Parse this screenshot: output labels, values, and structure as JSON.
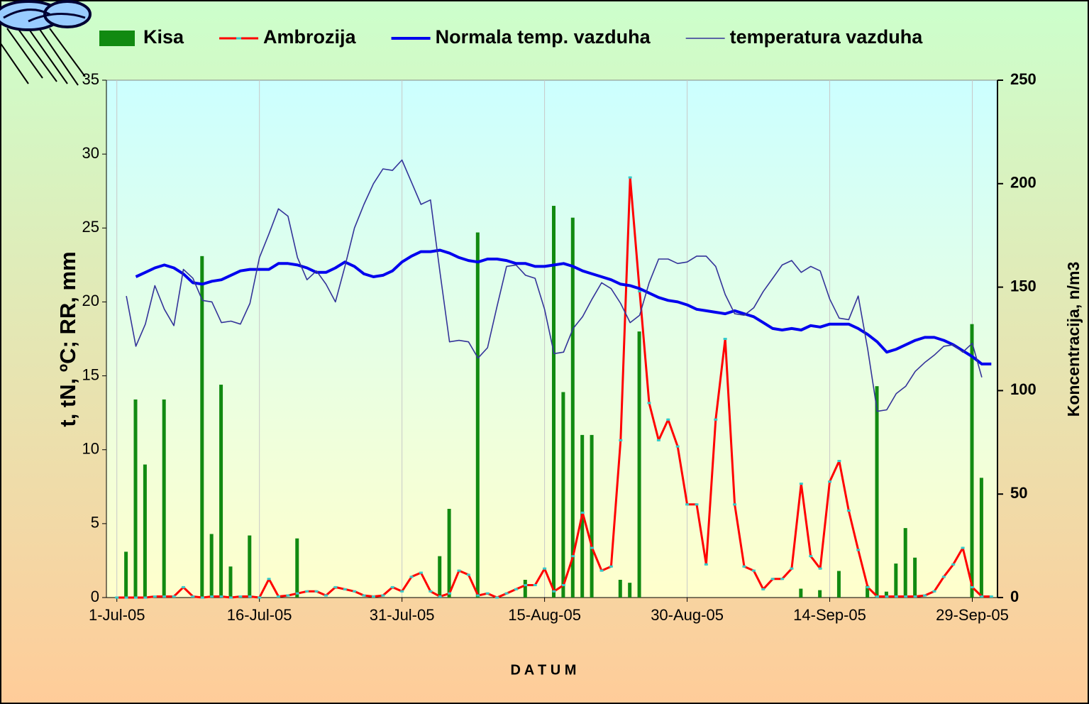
{
  "chart_data": {
    "type": "combo",
    "categories": [
      "1-Jul-05",
      null,
      null,
      null,
      null,
      null,
      null,
      null,
      null,
      null,
      null,
      null,
      null,
      null,
      null,
      "16-Jul-05",
      null,
      null,
      null,
      null,
      null,
      null,
      null,
      null,
      null,
      null,
      null,
      null,
      null,
      null,
      "31-Jul-05",
      null,
      null,
      null,
      null,
      null,
      null,
      null,
      null,
      null,
      null,
      null,
      null,
      null,
      null,
      "15-Aug-05",
      null,
      null,
      null,
      null,
      null,
      null,
      null,
      null,
      null,
      null,
      null,
      null,
      null,
      null,
      "30-Aug-05",
      null,
      null,
      null,
      null,
      null,
      null,
      null,
      null,
      null,
      null,
      null,
      null,
      null,
      null,
      "14-Sep-05",
      null,
      null,
      null,
      null,
      null,
      null,
      null,
      null,
      null,
      null,
      null,
      null,
      null,
      null,
      "29-Sep-05",
      null,
      null
    ],
    "x_label": "D A T U M",
    "y_label": "t, tN, ºC;  RR, mm",
    "y2_label": "Koncentracija, n/m3",
    "ylim": [
      0,
      35
    ],
    "yticks": [
      0,
      5,
      10,
      15,
      20,
      25,
      30,
      35
    ],
    "y2lim": [
      0,
      250
    ],
    "y2ticks": [
      0,
      50,
      100,
      150,
      200,
      250
    ],
    "xgrid": true,
    "legend": "top",
    "series": [
      {
        "name": "Kisa",
        "type": "bar",
        "color": "#118a11",
        "values": [
          0,
          3.1,
          13.4,
          9,
          0,
          13.4,
          0,
          0,
          0,
          23.1,
          4.3,
          14.4,
          2.1,
          0,
          4.2,
          0,
          0,
          0,
          0,
          4,
          0,
          0,
          0,
          0,
          0,
          0,
          0,
          0,
          0,
          0,
          0,
          0,
          0,
          0,
          2.8,
          6,
          0,
          0,
          24.7,
          0,
          0,
          0,
          0,
          1.2,
          0,
          0,
          26.5,
          13.9,
          25.7,
          11,
          11,
          0,
          0,
          1.2,
          1,
          18,
          0,
          0,
          0,
          0,
          0,
          0,
          0,
          0,
          0,
          0,
          0,
          0,
          0,
          0,
          0,
          0,
          0.6,
          0,
          0.5,
          0,
          1.8,
          0,
          0,
          0.8,
          14.3,
          0.4,
          2.3,
          4.7,
          2.7,
          0,
          0,
          0,
          0,
          0,
          18.5,
          8.1,
          0
        ]
      },
      {
        "name": "Ambrozija",
        "type": "line",
        "axis": "y2",
        "color": "#ff0000",
        "marker_color": "#33cccc",
        "values": [
          0,
          0,
          0,
          0,
          0.5,
          0.5,
          0.5,
          5,
          0.5,
          0,
          0.5,
          0.5,
          0,
          0.5,
          0.5,
          0,
          9,
          0.5,
          1,
          2,
          3,
          3,
          1,
          5,
          4,
          3,
          1,
          0.5,
          1,
          5,
          3,
          10,
          12,
          3,
          0.5,
          2,
          13,
          11,
          1,
          2,
          0,
          2,
          4,
          6,
          6,
          14,
          3,
          6,
          20,
          41,
          24,
          13,
          15,
          76,
          203,
          148,
          94,
          76,
          86,
          73,
          45,
          45,
          16,
          86,
          125,
          45,
          15,
          13,
          4,
          9,
          9,
          14,
          55,
          20,
          14,
          56,
          66,
          42,
          23,
          5,
          0.5,
          0.5,
          0.5,
          0.5,
          0.5,
          1,
          3,
          10,
          16,
          24,
          5,
          0.5,
          0.5
        ]
      },
      {
        "name": "Normala temp. vazduha",
        "type": "line",
        "color": "#0000ee",
        "width": 4,
        "values": [
          null,
          null,
          21.7,
          22.0,
          22.3,
          22.5,
          22.3,
          21.9,
          21.3,
          21.2,
          21.4,
          21.5,
          21.8,
          22.1,
          22.2,
          22.2,
          22.2,
          22.6,
          22.6,
          22.5,
          22.3,
          22.0,
          22.0,
          22.3,
          22.7,
          22.4,
          21.9,
          21.7,
          21.8,
          22.1,
          22.7,
          23.1,
          23.4,
          23.4,
          23.5,
          23.3,
          23.0,
          22.8,
          22.7,
          22.9,
          22.9,
          22.8,
          22.6,
          22.6,
          22.4,
          22.4,
          22.5,
          22.6,
          22.4,
          22.1,
          21.9,
          21.7,
          21.5,
          21.2,
          21.1,
          20.9,
          20.6,
          20.3,
          20.1,
          20.0,
          19.8,
          19.5,
          19.4,
          19.3,
          19.2,
          19.4,
          19.2,
          19.0,
          18.6,
          18.2,
          18.1,
          18.2,
          18.1,
          18.4,
          18.3,
          18.5,
          18.5,
          18.5,
          18.2,
          17.8,
          17.3,
          16.6,
          16.8,
          17.1,
          17.4,
          17.6,
          17.6,
          17.4,
          17.1,
          16.7,
          16.3,
          15.8,
          15.8
        ]
      },
      {
        "name": "temperatura vazduha",
        "type": "line",
        "color": "#333399",
        "width": 1.6,
        "values": [
          null,
          20.4,
          17.0,
          18.5,
          21.1,
          19.5,
          18.4,
          22.2,
          21.6,
          20.1,
          20.0,
          18.6,
          18.7,
          18.5,
          19.9,
          23.0,
          24.6,
          26.3,
          25.8,
          23.0,
          21.5,
          22.1,
          21.2,
          20.0,
          22.4,
          25.0,
          26.6,
          28.0,
          29.0,
          28.9,
          29.6,
          28.1,
          26.6,
          26.9,
          22.0,
          17.3,
          17.4,
          17.3,
          16.2,
          16.9,
          19.7,
          22.4,
          22.5,
          21.8,
          21.6,
          19.5,
          16.5,
          16.6,
          18.2,
          19.0,
          20.2,
          21.3,
          20.9,
          19.9,
          18.6,
          19.1,
          21.3,
          22.9,
          22.9,
          22.6,
          22.7,
          23.1,
          23.1,
          22.4,
          20.5,
          19.2,
          19.1,
          19.6,
          20.7,
          21.6,
          22.5,
          22.8,
          22.0,
          22.4,
          22.1,
          20.2,
          18.9,
          18.8,
          20.4,
          16.8,
          12.6,
          12.7,
          13.8,
          14.3,
          15.3,
          15.9,
          16.4,
          17.0,
          17.1,
          16.6,
          17.2,
          14.9,
          null
        ]
      }
    ]
  }
}
